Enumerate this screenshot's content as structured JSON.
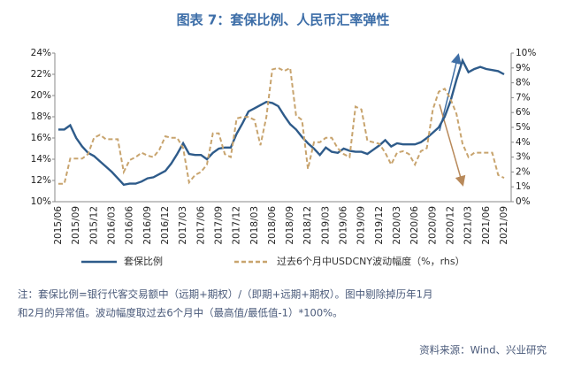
{
  "chart_data": {
    "type": "line",
    "title": "图表 7：套保比例、人民币汇率弹性",
    "categories": [
      "2015/06",
      null,
      null,
      "2015/09",
      null,
      null,
      "2015/12",
      null,
      null,
      "2016/03",
      null,
      null,
      "2016/06",
      null,
      null,
      "2016/09",
      null,
      null,
      "2016/12",
      null,
      null,
      "2017/03",
      null,
      null,
      "2017/06",
      null,
      null,
      "2017/09",
      null,
      null,
      "2017/12",
      null,
      null,
      "2018/03",
      null,
      null,
      "2018/06",
      null,
      null,
      "2018/09",
      null,
      null,
      "2018/12",
      null,
      null,
      "2019/03",
      null,
      null,
      "2019/06",
      null,
      null,
      "2019/09",
      null,
      null,
      "2019/12",
      null,
      null,
      "2020/03",
      null,
      null,
      "2020/06",
      null,
      null,
      "2020/09",
      null,
      null,
      "2020/12",
      null,
      null,
      "2021/03",
      null,
      null,
      "2021/06",
      null,
      null,
      "2021/09"
    ],
    "series": [
      {
        "name": "套保比例",
        "color": "#2e5b8a",
        "values": [
          16.8,
          16.8,
          17.2,
          16.0,
          15.2,
          14.6,
          14.3,
          13.8,
          13.3,
          12.8,
          12.2,
          11.6,
          11.7,
          11.7,
          11.9,
          12.2,
          12.3,
          12.6,
          12.9,
          13.6,
          14.5,
          15.5,
          14.5,
          14.4,
          14.4,
          14.0,
          14.6,
          15.0,
          15.1,
          15.1,
          16.4,
          17.4,
          18.5,
          18.8,
          19.1,
          19.4,
          19.3,
          19.0,
          18.1,
          17.3,
          16.8,
          16.1,
          15.5,
          15.0,
          14.4,
          15.1,
          14.7,
          14.6,
          15.0,
          14.8,
          14.7,
          14.7,
          14.5,
          14.9,
          15.3,
          15.8,
          15.2,
          15.5,
          15.4,
          15.4,
          15.4,
          15.6,
          16.0,
          16.5,
          17.0,
          18.0,
          19.5,
          21.5,
          23.3,
          22.2,
          22.5,
          22.7,
          22.5,
          22.4,
          22.3,
          22.0
        ]
      },
      {
        "name": "过去6个月中USDCNY波动幅度（%，rhs）",
        "color": "#c8a46e",
        "axis": "y2",
        "values": [
          1.2,
          1.2,
          2.9,
          2.9,
          2.9,
          3.2,
          4.3,
          4.5,
          4.2,
          4.2,
          4.2,
          2.0,
          2.8,
          3.0,
          3.3,
          3.1,
          3.0,
          3.5,
          4.4,
          4.3,
          4.3,
          3.6,
          1.3,
          1.8,
          2.0,
          2.5,
          4.6,
          4.6,
          3.2,
          3.0,
          5.6,
          5.7,
          5.7,
          5.5,
          3.8,
          5.7,
          8.9,
          9.0,
          8.8,
          9.0,
          5.8,
          5.5,
          2.2,
          4.0,
          4.0,
          4.3,
          4.3,
          3.6,
          3.2,
          3.0,
          6.4,
          6.2,
          4.1,
          4.0,
          3.9,
          3.3,
          2.5,
          3.3,
          3.4,
          3.2,
          2.5,
          3.4,
          3.6,
          6.2,
          7.4,
          7.6,
          6.9,
          5.9,
          3.9,
          3.0,
          3.3,
          3.3,
          3.3,
          3.3,
          1.8,
          1.6
        ]
      }
    ],
    "ylim": [
      10,
      24
    ],
    "yticks": [
      {
        "value": 10,
        "label": "10%"
      },
      {
        "value": 12,
        "label": "12%"
      },
      {
        "value": 14,
        "label": "14%"
      },
      {
        "value": 16,
        "label": "16%"
      },
      {
        "value": 18,
        "label": "18%"
      },
      {
        "value": 20,
        "label": "20%"
      },
      {
        "value": 22,
        "label": "22%"
      },
      {
        "value": 24,
        "label": "24%"
      }
    ],
    "y2lim": [
      0,
      10
    ],
    "y2ticks": [
      {
        "value": 0,
        "label": "0%"
      },
      {
        "value": 1,
        "label": "1%"
      },
      {
        "value": 2,
        "label": "2%"
      },
      {
        "value": 3,
        "label": "3%"
      },
      {
        "value": 4,
        "label": "4%"
      },
      {
        "value": 5,
        "label": "5%"
      },
      {
        "value": 6,
        "label": "6%"
      },
      {
        "value": 7,
        "label": "7%"
      },
      {
        "value": 8,
        "label": "8%"
      },
      {
        "value": 9,
        "label": "9%"
      },
      {
        "value": 10,
        "label": "10%"
      }
    ],
    "grid": false,
    "legend": "bottom",
    "notes": [
      "注：套保比例=银行代客交易额中（远期+期权）/（即期+远期+期权）。图中剔除掉历年1月",
      "和2月的异常值。波动幅度取过去6个月中（最高值/最低值-1）*100%。"
    ],
    "source": "资料来源：Wind、兴业研究"
  }
}
